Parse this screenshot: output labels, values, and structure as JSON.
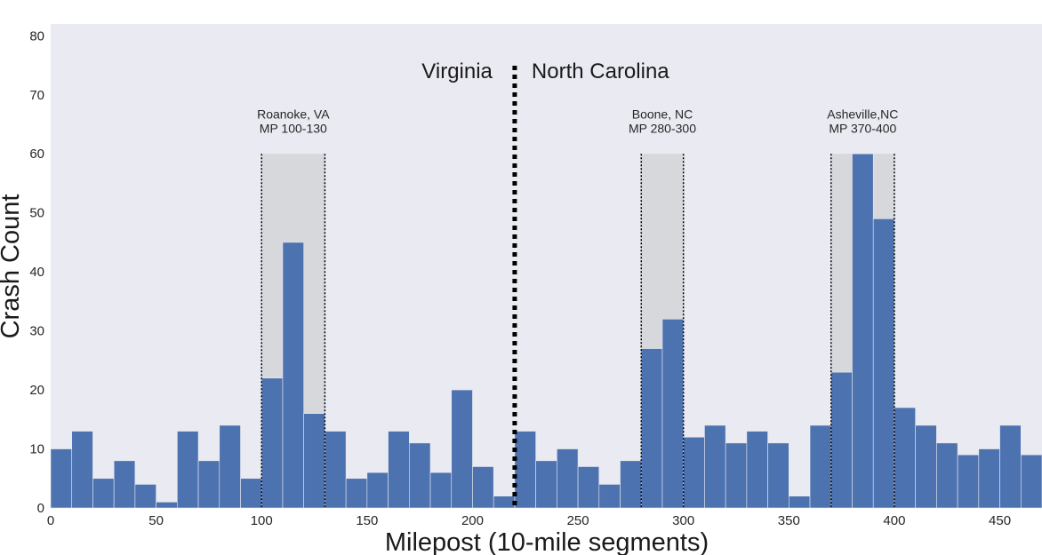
{
  "chart_data": {
    "type": "bar",
    "xlabel": "Milepost (10-mile segments)",
    "ylabel": "Crash Count",
    "xlim": [
      0,
      470
    ],
    "ylim": [
      0,
      82
    ],
    "xticks": [
      "0",
      "50",
      "100",
      "150",
      "200",
      "250",
      "300",
      "350",
      "400",
      "450"
    ],
    "yticks": [
      "0",
      "10",
      "20",
      "30",
      "40",
      "50",
      "60",
      "70",
      "80"
    ],
    "bin_width": 10,
    "bin_offset": 0,
    "values": [
      10,
      13,
      5,
      8,
      4,
      1,
      13,
      8,
      14,
      5,
      22,
      45,
      16,
      13,
      5,
      6,
      13,
      11,
      6,
      20,
      7,
      2,
      13,
      8,
      10,
      7,
      4,
      8,
      27,
      32,
      12,
      14,
      11,
      13,
      11,
      2,
      14,
      23,
      60,
      49,
      17,
      14,
      11,
      9,
      10,
      14,
      9
    ],
    "highlight_regions": [
      {
        "range": [
          100,
          130
        ],
        "label_line1": "Roanoke, VA",
        "label_line2": "MP 100-130"
      },
      {
        "range": [
          280,
          300
        ],
        "label_line1": "Boone, NC",
        "label_line2": "MP 280-300"
      },
      {
        "range": [
          370,
          400
        ],
        "label_line1": "Asheville,NC",
        "label_line2": "MP 370-400"
      }
    ],
    "state_boundary": {
      "x": 220,
      "left_label": "Virginia",
      "right_label": "North Carolina"
    },
    "colors": {
      "bar": "#4c72b0",
      "background": "#eaeaf2",
      "highlight": "#d7d8dc"
    },
    "grid": false
  }
}
